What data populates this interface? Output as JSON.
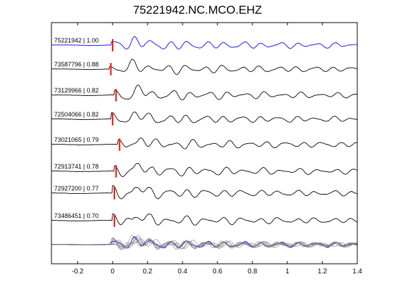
{
  "chart_data": {
    "type": "line",
    "title": "75221942.NC.MCO.EHZ",
    "xlabel": "",
    "ylabel": "",
    "xlim": [
      -0.35,
      1.4
    ],
    "xticks": [
      -0.2,
      0,
      0.2,
      0.4,
      0.6,
      0.8,
      1,
      1.2,
      1.4
    ],
    "xtick_labels": [
      "-0.2",
      "0",
      "0.2",
      "0.4",
      "0.6",
      "0.8",
      "1",
      "1.2",
      "1.4"
    ],
    "grid": false,
    "colors": {
      "reference": "#0000ff",
      "trace": "#000000",
      "stack": "#808080",
      "pick": "#ff0000"
    },
    "series": [
      {
        "name": "75221942 | 1.00",
        "pick": 0.0,
        "reference": true
      },
      {
        "name": "73587796 | 0.88",
        "pick": -0.01
      },
      {
        "name": "73129966 | 0.82",
        "pick": 0.02
      },
      {
        "name": "72504066 | 0.82",
        "pick": 0.0
      },
      {
        "name": "73021065 | 0.79",
        "pick": 0.04
      },
      {
        "name": "72913741 | 0.78",
        "pick": 0.02
      },
      {
        "name": "72927200 | 0.77",
        "pick": 0.01
      },
      {
        "name": "73486451 | 0.70",
        "pick": 0.01
      }
    ]
  }
}
